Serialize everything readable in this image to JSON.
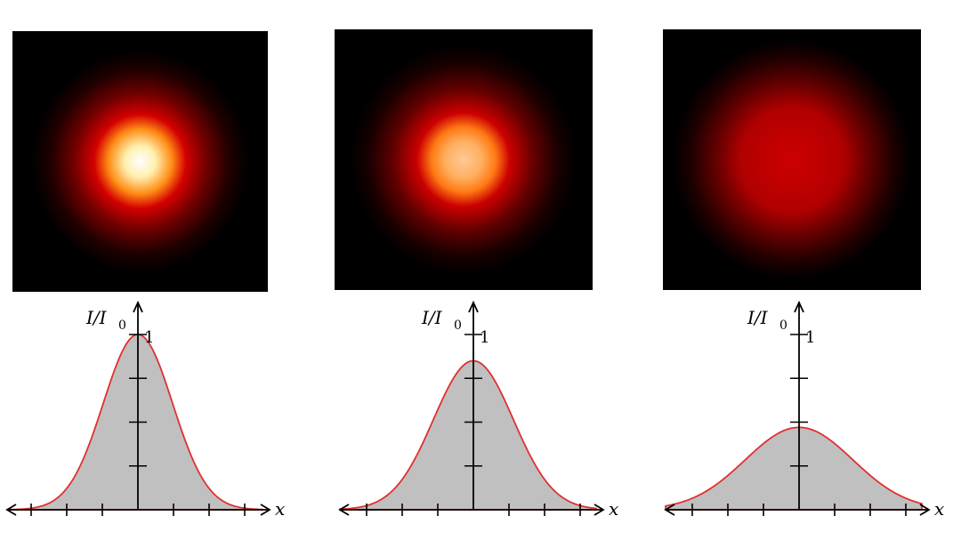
{
  "panels": [
    {
      "peak": 1.0,
      "sigma": 1.0,
      "core_color": "#ffffff",
      "mid_color": "#ff8c14",
      "edge_color": "#d40000"
    },
    {
      "peak": 0.85,
      "sigma": 1.15,
      "core_color": "#ffc89a",
      "mid_color": "#ff7a14",
      "edge_color": "#cc0000"
    },
    {
      "peak": 0.47,
      "sigma": 1.55,
      "core_color": "#cc0000",
      "mid_color": "#b00000",
      "edge_color": "#600000"
    }
  ],
  "labels": {
    "y_axis": "I/I",
    "y_axis_sub": "0",
    "x_axis": "x",
    "y_max_tick": "1"
  },
  "colors": {
    "curve_stroke": "#e03030",
    "curve_fill": "#c0c0c0"
  }
}
